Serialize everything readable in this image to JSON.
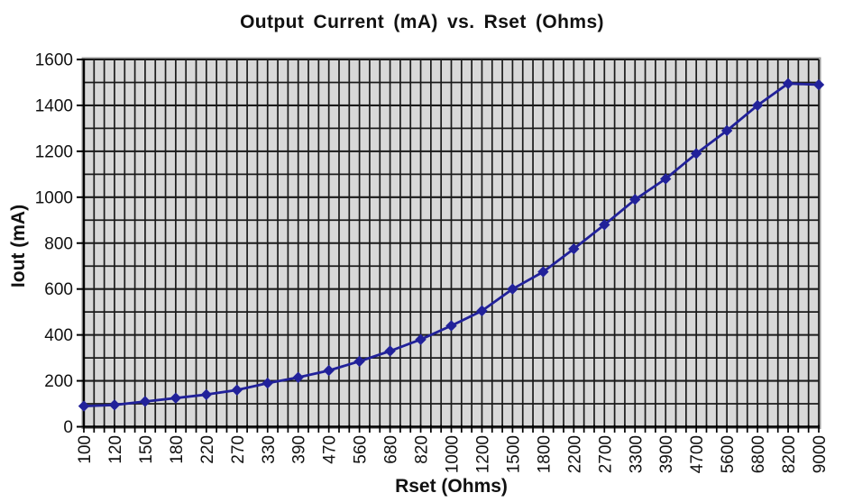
{
  "chart_data": {
    "type": "line",
    "title": "Output Current (mA) vs. Rset (Ohms)",
    "xlabel": "Rset (Ohms)",
    "ylabel": "Iout (mA)",
    "categories": [
      "100",
      "120",
      "150",
      "180",
      "220",
      "270",
      "330",
      "390",
      "470",
      "560",
      "680",
      "820",
      "1000",
      "1200",
      "1500",
      "1800",
      "2200",
      "2700",
      "3300",
      "3900",
      "4700",
      "5600",
      "6800",
      "8200",
      "9000"
    ],
    "series": [
      {
        "name": "Iout (mA)",
        "values": [
          90,
          95,
          110,
          125,
          140,
          160,
          190,
          215,
          245,
          285,
          330,
          380,
          440,
          505,
          600,
          675,
          775,
          880,
          990,
          1080,
          1190,
          1290,
          1400,
          1495,
          1490
        ]
      }
    ],
    "ylim": [
      0,
      1600
    ],
    "y_major_step": 200,
    "y_minor_step": 100,
    "x_minor_divisions_per_category": 3,
    "grid": "both",
    "legend_position": "none",
    "marker": "diamond",
    "colors": {
      "series": "#21219a",
      "plot_background": "#d8d8d8",
      "gridline": "#1b1b1b",
      "axis": "#000000",
      "text": "#111111",
      "plot_border": "#9a9a9a"
    }
  }
}
